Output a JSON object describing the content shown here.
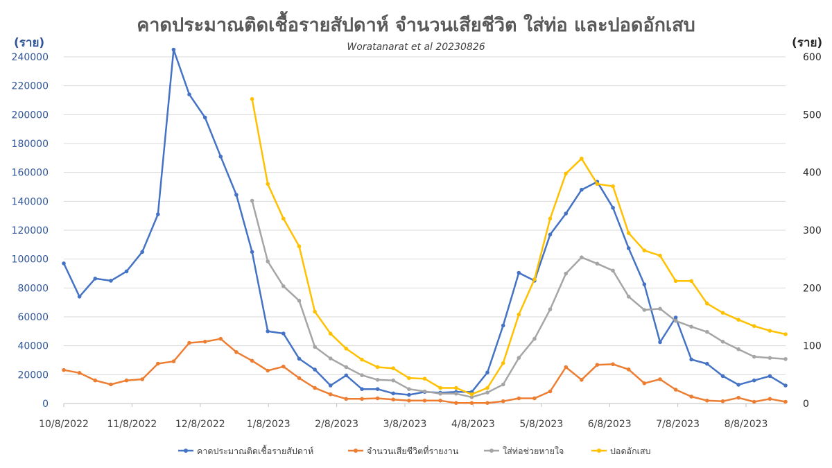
{
  "chart_data": {
    "type": "line",
    "title": "คาดประมาณติดเชื้อรายสัปดาห์ จำนวนเสียชีวิต ใส่ท่อ และปอดอักเสบ",
    "subtitle": "Woratanarat et al 20230826",
    "ylabel_left": "(ราย)",
    "ylabel_right": "(ราย)",
    "ylim_left": [
      0,
      240000
    ],
    "ylim_right": [
      0,
      600
    ],
    "yticks_left": [
      "0",
      "20000",
      "40000",
      "60000",
      "80000",
      "100000",
      "120000",
      "140000",
      "160000",
      "180000",
      "200000",
      "220000",
      "240000"
    ],
    "yticks_right": [
      "0",
      "100",
      "200",
      "300",
      "400",
      "500",
      "600"
    ],
    "x_tick_labels": [
      "10/8/2022",
      "11/8/2022",
      "12/8/2022",
      "1/8/2023",
      "2/8/2023",
      "3/8/2023",
      "4/8/2023",
      "5/8/2023",
      "6/8/2023",
      "7/8/2023",
      "8/8/2023"
    ],
    "grid": true,
    "legend_position": "bottom",
    "series": [
      {
        "name": "คาดประมาณติดเชื้อรายสัปดาห์",
        "axis": "left",
        "color": "#4472c4",
        "values": [
          97000,
          74000,
          86500,
          85000,
          91500,
          105000,
          131000,
          245000,
          214000,
          198000,
          171000,
          144500,
          105000,
          50000,
          48500,
          31000,
          23500,
          12500,
          19500,
          10000,
          10000,
          7000,
          6000,
          8000,
          7500,
          8000,
          8000,
          21500,
          54000,
          90500,
          85000,
          117000,
          131500,
          148000,
          153500,
          135500,
          107500,
          82500,
          42500,
          59500,
          30500,
          27500,
          19000,
          13000,
          16000,
          19000,
          12500
        ]
      },
      {
        "name": "จำนวนเสียชีวิตที่รายงาน",
        "axis": "right",
        "color": "#ed7d31",
        "values": [
          58,
          53,
          40,
          33,
          40,
          42,
          69,
          73,
          105,
          107,
          112,
          89,
          74,
          57,
          64,
          44,
          27,
          16,
          8,
          8,
          9,
          7,
          5,
          5,
          5,
          1,
          1,
          1,
          4,
          9,
          9,
          21,
          63,
          41,
          67,
          68,
          59,
          35,
          42,
          24,
          12,
          5,
          4,
          10,
          3,
          8,
          3
        ]
      },
      {
        "name": "ใส่ท่อช่วยหายใจ",
        "axis": "right",
        "color": "#a5a5a5",
        "values": [
          null,
          null,
          null,
          null,
          null,
          null,
          null,
          null,
          null,
          null,
          null,
          null,
          351,
          246,
          203,
          178,
          98,
          78,
          63,
          49,
          41,
          40,
          25,
          21,
          17,
          17,
          11,
          19,
          33,
          79,
          112,
          163,
          225,
          253,
          242,
          230,
          185,
          162,
          164,
          143,
          133,
          124,
          107,
          94,
          81,
          79,
          77
        ]
      },
      {
        "name": "ปอดอักเสบ",
        "axis": "right",
        "color": "#ffc000",
        "values": [
          null,
          null,
          null,
          null,
          null,
          null,
          null,
          null,
          null,
          null,
          null,
          null,
          527,
          380,
          320,
          272,
          159,
          121,
          95,
          76,
          63,
          61,
          44,
          43,
          27,
          27,
          16,
          27,
          70,
          154,
          215,
          320,
          398,
          424,
          380,
          376,
          295,
          265,
          256,
          212,
          212,
          173,
          157,
          145,
          134,
          126,
          120
        ]
      }
    ]
  }
}
